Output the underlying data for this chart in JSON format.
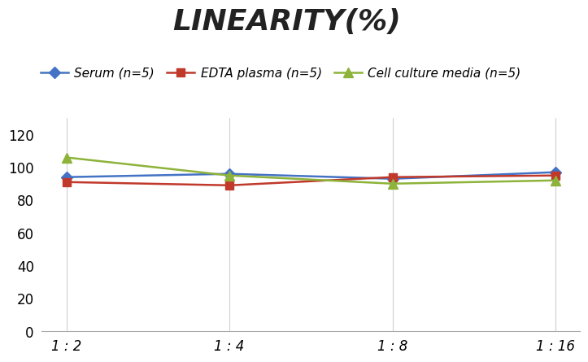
{
  "title": "LINEARITY(%)",
  "title_fontsize": 26,
  "title_fontstyle": "italic",
  "title_fontweight": "bold",
  "x_labels": [
    "1 : 2",
    "1 : 4",
    "1 : 8",
    "1 : 16"
  ],
  "x_positions": [
    0,
    1,
    2,
    3
  ],
  "series": [
    {
      "label": "Serum (n=5)",
      "values": [
        94,
        96,
        93,
        97
      ],
      "color": "#4472C4",
      "marker": "D",
      "marker_size": 7,
      "linewidth": 1.8
    },
    {
      "label": "EDTA plasma (n=5)",
      "values": [
        91,
        89,
        94,
        95
      ],
      "color": "#C0392B",
      "marker": "s",
      "marker_size": 7,
      "linewidth": 1.8
    },
    {
      "label": "Cell culture media (n=5)",
      "values": [
        106,
        95,
        90,
        92
      ],
      "color": "#8DB33A",
      "marker": "^",
      "marker_size": 9,
      "linewidth": 1.8
    }
  ],
  "ylim": [
    0,
    130
  ],
  "yticks": [
    0,
    20,
    40,
    60,
    80,
    100,
    120
  ],
  "background_color": "#ffffff",
  "grid_color": "#d0d0d0",
  "legend_fontsize": 11,
  "tick_fontsize": 12
}
